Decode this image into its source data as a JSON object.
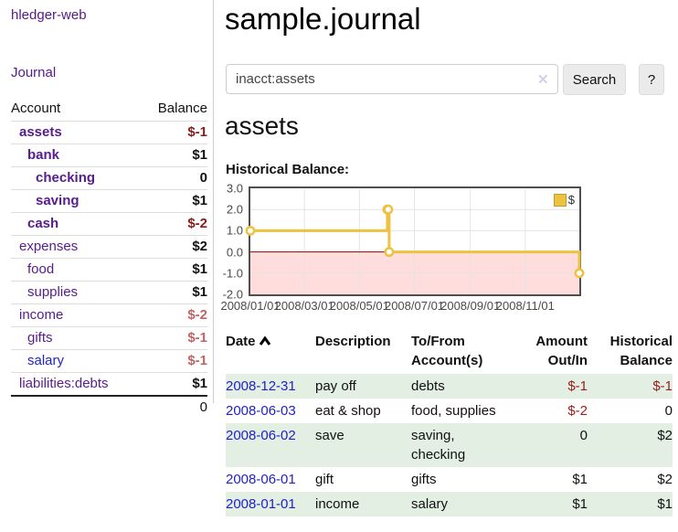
{
  "app": {
    "brand": "hledger-web",
    "nav_journal": "Journal"
  },
  "sidebar": {
    "headers": {
      "account": "Account",
      "balance": "Balance"
    },
    "accounts": [
      {
        "name": "assets",
        "depth": 1,
        "strong": true,
        "balance": "$-1",
        "tone": "neg-strong"
      },
      {
        "name": "bank",
        "depth": 2,
        "strong": true,
        "balance": "$1",
        "tone": "pos"
      },
      {
        "name": "checking",
        "depth": 3,
        "strong": true,
        "balance": "0",
        "tone": "pos"
      },
      {
        "name": "saving",
        "depth": 3,
        "strong": true,
        "balance": "$1",
        "tone": "pos"
      },
      {
        "name": "cash",
        "depth": 2,
        "strong": true,
        "balance": "$-2",
        "tone": "neg-strong"
      },
      {
        "name": "expenses",
        "depth": 1,
        "strong": false,
        "balance": "$2",
        "tone": "pos"
      },
      {
        "name": "food",
        "depth": 2,
        "strong": false,
        "balance": "$1",
        "tone": "pos"
      },
      {
        "name": "supplies",
        "depth": 2,
        "strong": false,
        "balance": "$1",
        "tone": "pos"
      },
      {
        "name": "income",
        "depth": 1,
        "strong": false,
        "balance": "$-2",
        "tone": "neg-soft"
      },
      {
        "name": "gifts",
        "depth": 2,
        "strong": false,
        "balance": "$-1",
        "tone": "neg-soft"
      },
      {
        "name": "salary",
        "depth": 2,
        "strong": false,
        "balance": "$-1",
        "tone": "neg-soft",
        "link": "blue"
      },
      {
        "name": "liabilities:debts",
        "depth": 1,
        "strong": false,
        "balance": "$1",
        "tone": "pos"
      }
    ],
    "total": "0"
  },
  "header": {
    "title": "sample.journal"
  },
  "search": {
    "value": "inacct:assets",
    "clear_icon": "✕",
    "button": "Search",
    "help": "?"
  },
  "account_page": {
    "heading": "assets",
    "chart_label": "Historical Balance:"
  },
  "chart_data": {
    "type": "line",
    "style": "step-after",
    "title": "Historical Balance:",
    "series": [
      {
        "name": "$",
        "color": "#edc240",
        "points": [
          [
            "2008-01-01",
            1
          ],
          [
            "2008-06-01",
            2
          ],
          [
            "2008-06-02",
            2
          ],
          [
            "2008-06-03",
            0
          ],
          [
            "2008-12-31",
            -1
          ]
        ]
      }
    ],
    "xlim": [
      "2008-01-01",
      "2008-12-31"
    ],
    "ylim": [
      -2,
      3
    ],
    "x_ticks": [
      "2008/01/01",
      "2008/03/01",
      "2008/05/01",
      "2008/07/01",
      "2008/09/01",
      "2008/11/01"
    ],
    "y_ticks": [
      "3.0",
      "2.0",
      "1.0",
      "0.0",
      "-1.0",
      "-2.0"
    ],
    "legend": "$",
    "legend_position": "top-right",
    "grid": true,
    "negative_region_color": "#ffdddd",
    "zero_line_color": "#990000",
    "grid_color": "#e4e4e4"
  },
  "transactions": {
    "headers": [
      {
        "label": "Date",
        "sort_icon": true
      },
      {
        "label": "Description"
      },
      {
        "label": "To/From Account(s)"
      },
      {
        "label": "Amount Out/In",
        "align": "right"
      },
      {
        "label": "Historical Balance",
        "align": "right"
      }
    ],
    "rows": [
      {
        "date": "2008-12-31",
        "description": "pay off",
        "accounts": "debts",
        "amount": "$-1",
        "amount_tone": "neg",
        "balance": "$-1",
        "balance_tone": "neg"
      },
      {
        "date": "2008-06-03",
        "description": "eat & shop",
        "accounts": "food, supplies",
        "amount": "$-2",
        "amount_tone": "neg",
        "balance": "0",
        "balance_tone": "pos"
      },
      {
        "date": "2008-06-02",
        "description": "save",
        "accounts": "saving, checking",
        "amount": "0",
        "amount_tone": "pos",
        "balance": "$2",
        "balance_tone": "pos"
      },
      {
        "date": "2008-06-01",
        "description": "gift",
        "accounts": "gifts",
        "amount": "$1",
        "amount_tone": "pos",
        "balance": "$2",
        "balance_tone": "pos"
      },
      {
        "date": "2008-01-01",
        "description": "income",
        "accounts": "salary",
        "amount": "$1",
        "amount_tone": "pos",
        "balance": "$1",
        "balance_tone": "pos"
      }
    ]
  },
  "colors": {
    "link_purple": "#571c8d",
    "link_blue": "#2121cc",
    "negative_strong": "#8b1a1a",
    "negative_soft": "#c06565",
    "negative_table": "#9b1c1c",
    "row_stripe_green": "#e2efe2",
    "chart_line": "#edc240"
  }
}
